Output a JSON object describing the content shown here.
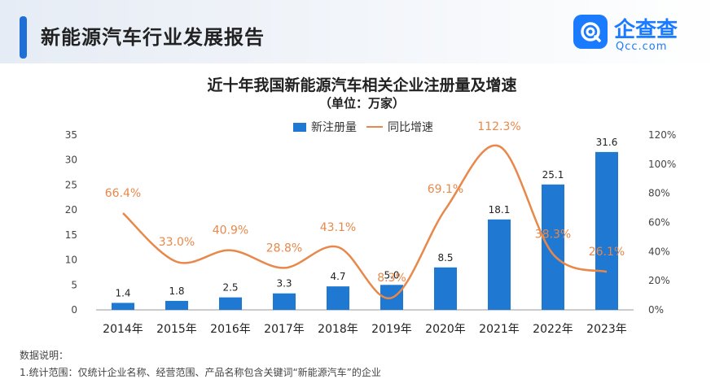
{
  "header": {
    "report_title": "新能源汽车行业发展报告",
    "logo_name": "企查查",
    "logo_sub": "Qcc.com"
  },
  "chart_data": {
    "type": "bar+line",
    "title": "近十年我国新能源汽车相关企业注册量及增速",
    "subtitle": "（单位：万家）",
    "categories": [
      "2014年",
      "2015年",
      "2016年",
      "2017年",
      "2018年",
      "2019年",
      "2020年",
      "2021年",
      "2022年",
      "2023年"
    ],
    "series": [
      {
        "name": "新注册量",
        "type": "bar",
        "axis": "left",
        "values": [
          1.4,
          1.8,
          2.5,
          3.3,
          4.7,
          5.0,
          8.5,
          18.1,
          25.1,
          31.6
        ],
        "labels": [
          "1.4",
          "1.8",
          "2.5",
          "3.3",
          "4.7",
          "5.0",
          "8.5",
          "18.1",
          "25.1",
          "31.6"
        ]
      },
      {
        "name": "同比增速",
        "type": "line",
        "axis": "right",
        "values": [
          66.4,
          33.0,
          40.9,
          28.8,
          43.1,
          8.3,
          69.1,
          112.3,
          38.3,
          26.1
        ],
        "labels": [
          "66.4%",
          "33.0%",
          "40.9%",
          "28.8%",
          "43.1%",
          "8.3%",
          "69.1%",
          "112.3%",
          "38.3%",
          "26.1%"
        ]
      }
    ],
    "y_left": {
      "min": 0,
      "max": 35,
      "ticks": [
        "0",
        "5",
        "10",
        "15",
        "20",
        "25",
        "30",
        "35"
      ]
    },
    "y_right": {
      "min": 0,
      "max": 120,
      "ticks": [
        "0%",
        "20%",
        "40%",
        "60%",
        "80%",
        "100%",
        "120%"
      ]
    },
    "colors": {
      "bar": "#1f78d1",
      "line": "#e8884a",
      "axis": "#999999"
    }
  },
  "notes": {
    "title": "数据说明：",
    "line1": "1.统计范围：仅统计企业名称、经营范围、产品名称包含关键词“新能源汽车”的企业"
  }
}
